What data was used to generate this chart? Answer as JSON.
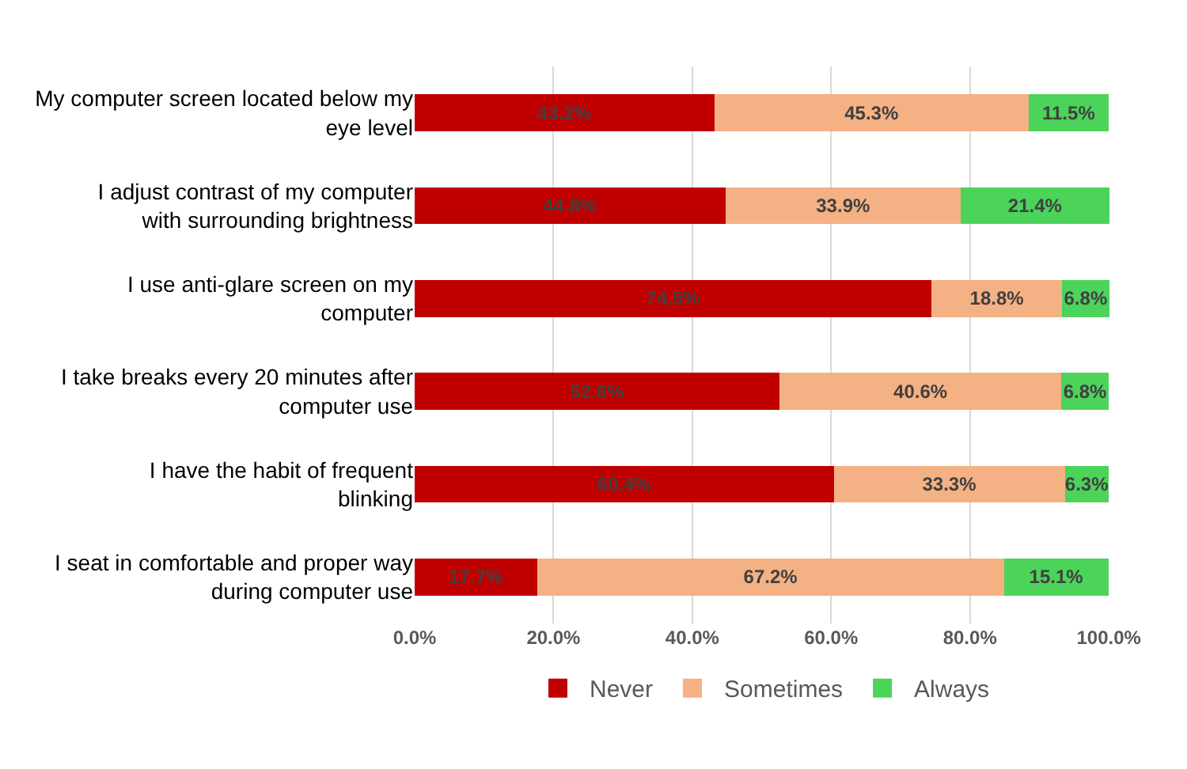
{
  "chart_data": {
    "type": "bar",
    "orientation": "horizontal",
    "stacked": true,
    "categories": [
      "My computer screen located below my eye level",
      "I adjust contrast of my computer with surrounding brightness",
      "I use anti-glare screen on my computer",
      "I take breaks every 20 minutes after computer use",
      "I have the habit of frequent blinking",
      "I seat in comfortable and proper way during computer use"
    ],
    "series": [
      {
        "name": "Never",
        "color": "#c00000",
        "values": [
          43.2,
          44.8,
          74.5,
          52.6,
          60.4,
          17.7
        ],
        "value_labels": [
          "43.2%",
          "44.8%",
          "74.5%",
          "52.6%",
          "60.4%",
          "17.7%"
        ]
      },
      {
        "name": "Sometimes",
        "color": "#f4b183",
        "values": [
          45.3,
          33.9,
          18.8,
          40.6,
          33.3,
          67.2
        ],
        "value_labels": [
          "45.3%",
          "33.9%",
          "18.8%",
          "40.6%",
          "33.3%",
          "67.2%"
        ]
      },
      {
        "name": "Always",
        "color": "#4cd35a",
        "values": [
          11.5,
          21.4,
          6.8,
          6.8,
          6.3,
          15.1
        ],
        "value_labels": [
          "11.5%",
          "21.4%",
          "6.8%",
          "6.8%",
          "6.3%",
          "15.1%"
        ]
      }
    ],
    "xlim": [
      0,
      100.1
    ],
    "xticks": [
      {
        "value": 0,
        "label": "0.0%"
      },
      {
        "value": 20,
        "label": "20.0%"
      },
      {
        "value": 40,
        "label": "40.0%"
      },
      {
        "value": 60,
        "label": "60.0%"
      },
      {
        "value": 80,
        "label": "80.0%"
      },
      {
        "value": 100,
        "label": "100.0%"
      }
    ],
    "grid": "x",
    "legend": "bottom"
  }
}
